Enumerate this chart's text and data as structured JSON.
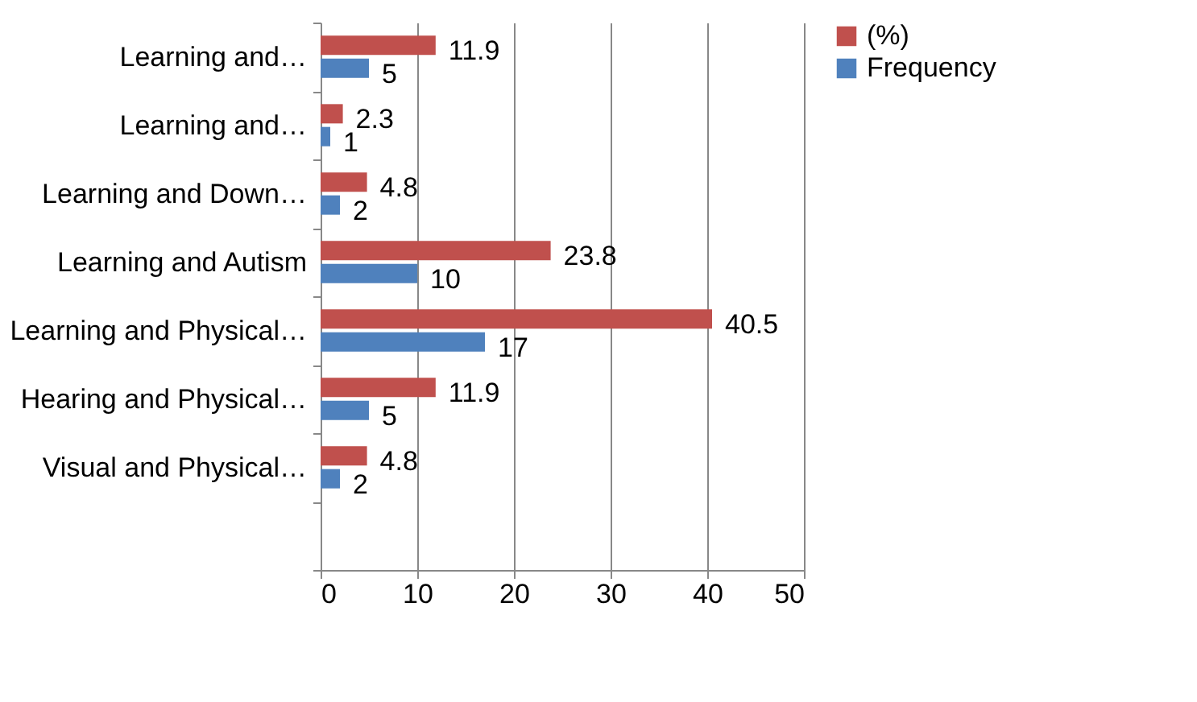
{
  "chart_data": {
    "type": "bar",
    "orientation": "horizontal",
    "categories": [
      "Learning and…",
      "Learning and…",
      "Learning and Down…",
      "Learning and Autism",
      "Learning and Physical…",
      "Hearing and Physical…",
      "Visual and Physical…",
      null
    ],
    "series": [
      {
        "name": "(%)",
        "color": "#c0504d",
        "values": [
          11.9,
          2.3,
          4.8,
          23.8,
          40.5,
          11.9,
          4.8,
          null
        ]
      },
      {
        "name": "Frequency",
        "color": "#4f81bd",
        "values": [
          5,
          1,
          2,
          10,
          17,
          5,
          2,
          null
        ]
      }
    ],
    "xlim": [
      0,
      50
    ],
    "xticks": [
      0,
      10,
      20,
      30,
      40,
      50
    ],
    "grid": "x",
    "legend": "right",
    "data_labels": true
  }
}
